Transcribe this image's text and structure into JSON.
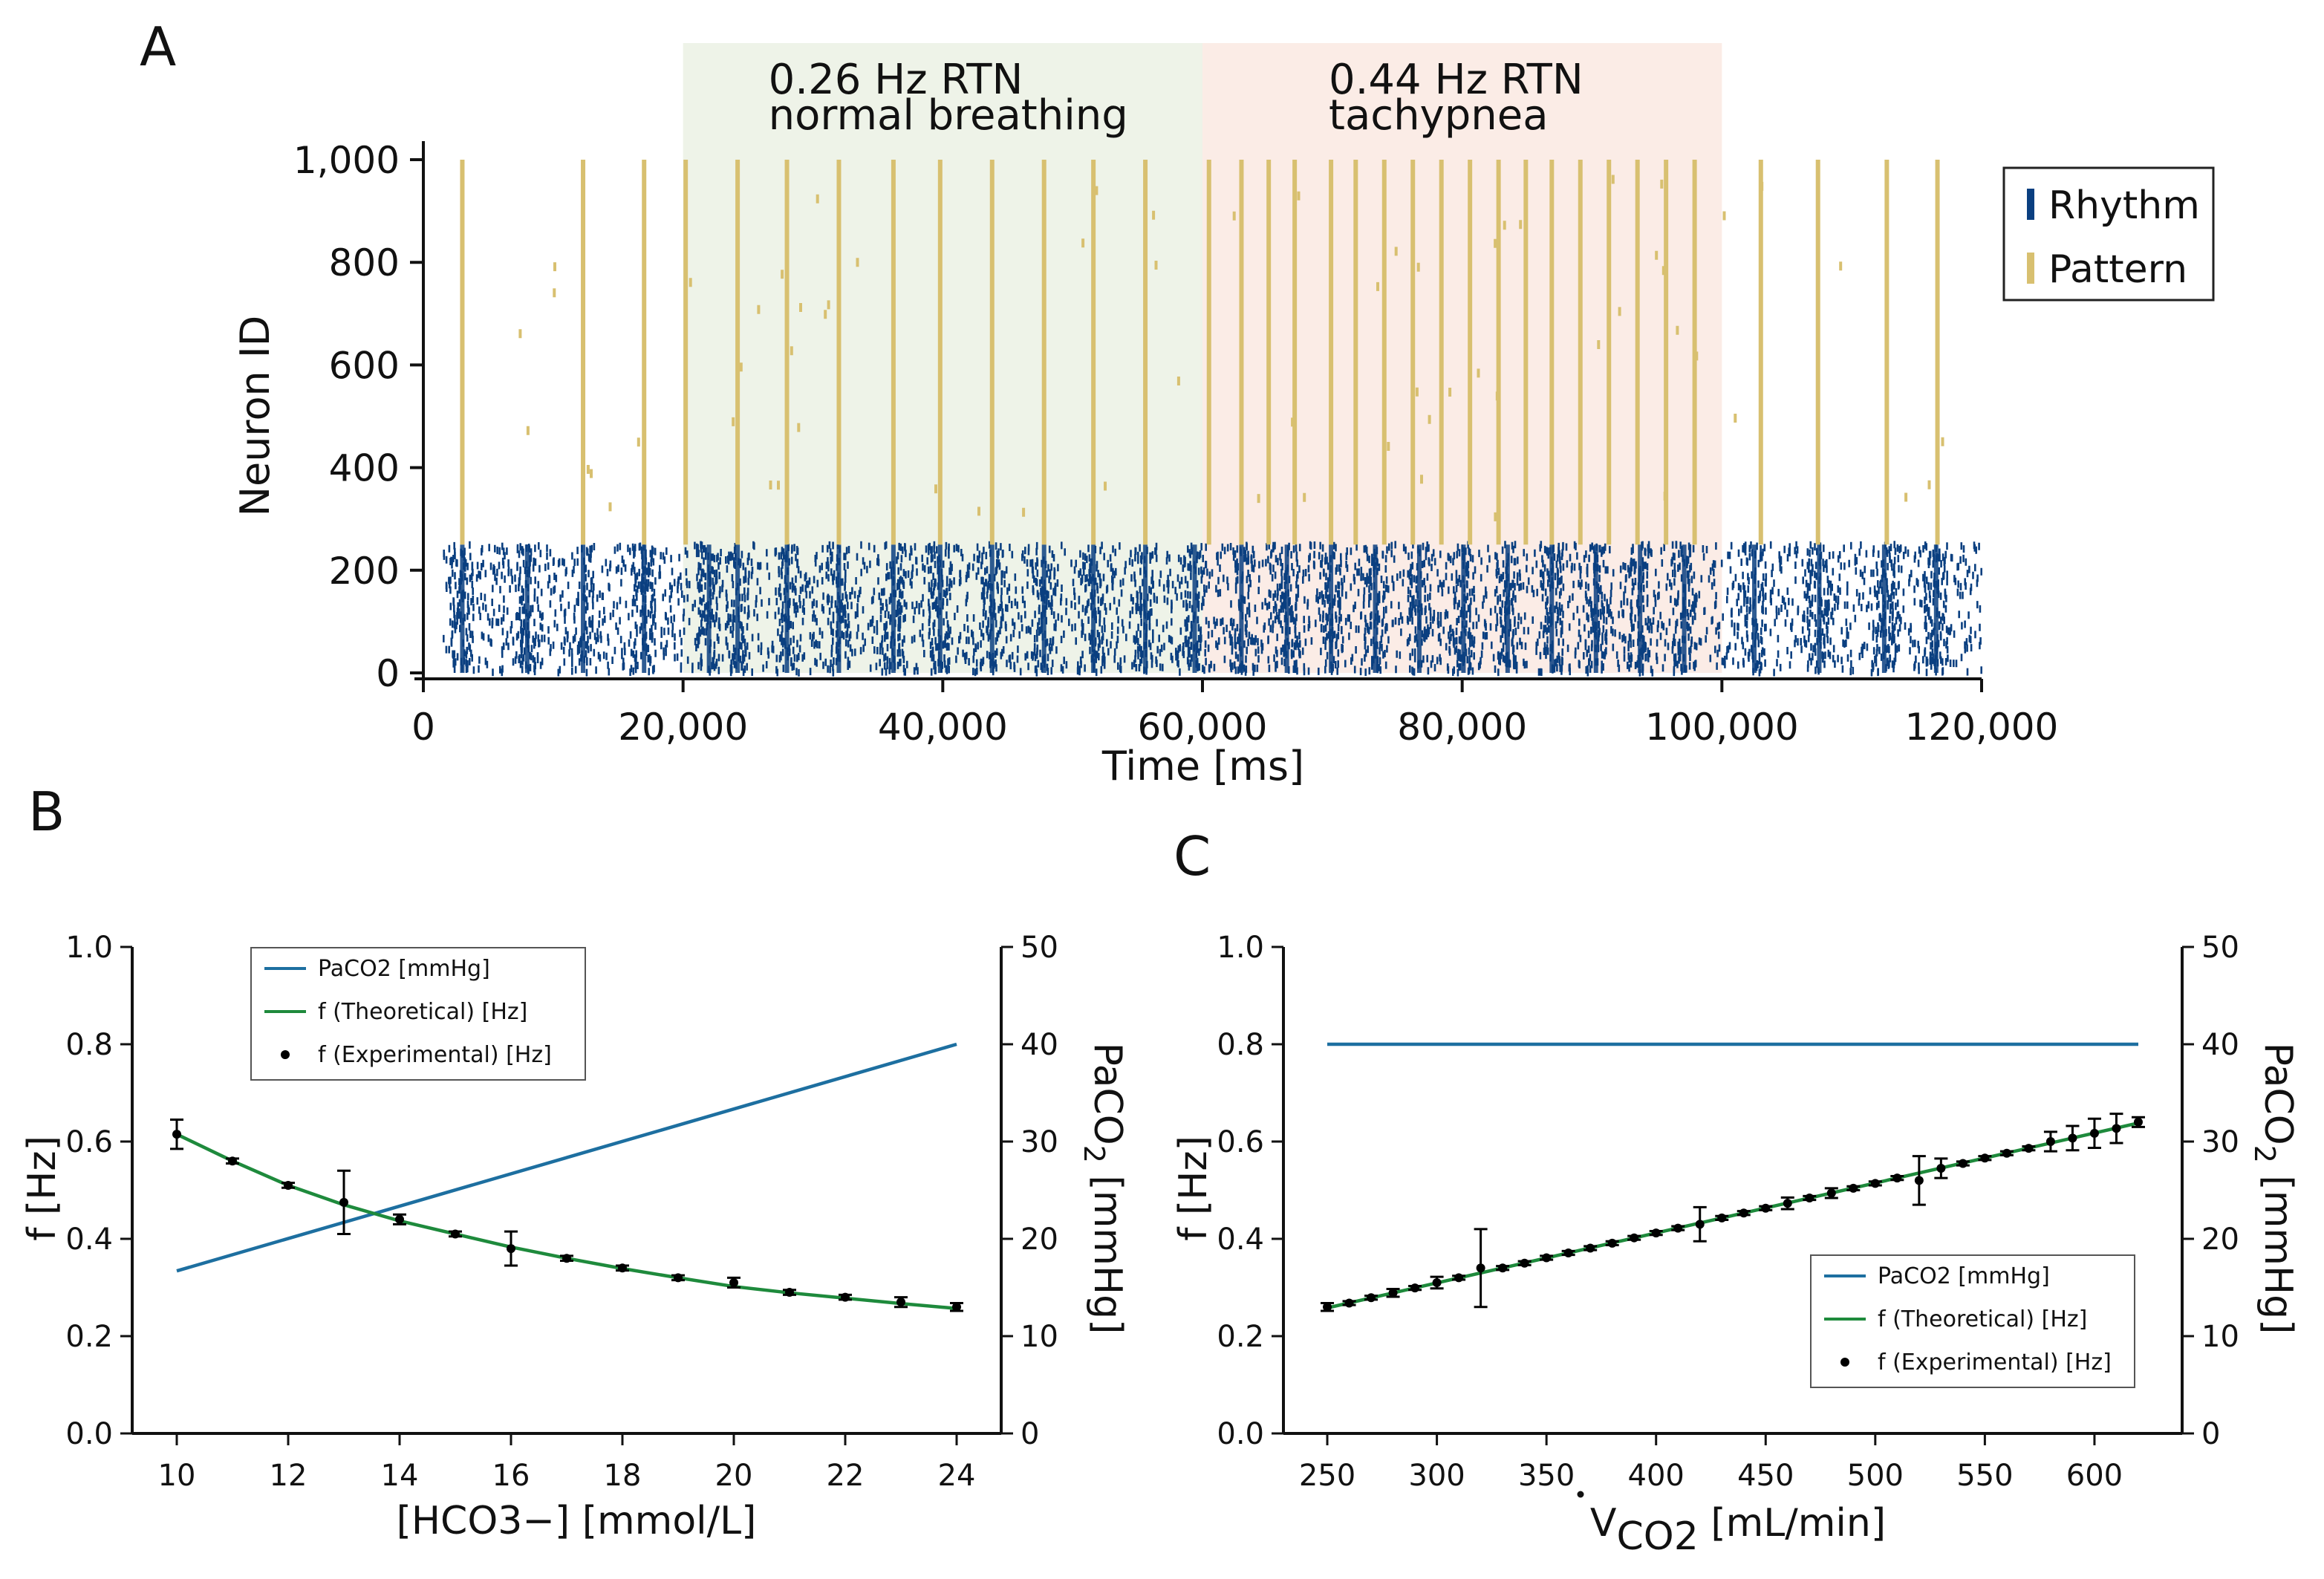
{
  "chart_data": [
    {
      "panel": "A",
      "type": "scatter",
      "subtype": "raster",
      "xlabel": "Time [ms]",
      "ylabel": "Neuron ID",
      "xlim": [
        0,
        120000
      ],
      "ylim": [
        0,
        1000
      ],
      "x_ticks": [
        0,
        20000,
        40000,
        60000,
        80000,
        100000,
        120000
      ],
      "x_tick_labels": [
        "0",
        "20,000",
        "40,000",
        "60,000",
        "80,000",
        "100,000",
        "120,000"
      ],
      "y_ticks": [
        0,
        200,
        400,
        600,
        800,
        1000
      ],
      "y_tick_labels": [
        "0",
        "200",
        "400",
        "600",
        "800",
        "1,000"
      ],
      "legend": [
        "Rhythm",
        "Pattern"
      ],
      "legend_position": "right",
      "colors": {
        "rhythm": "#0a3f80",
        "pattern": "#d8c070",
        "normal_bg": "#eef3e8",
        "tachy_bg": "#fbece6"
      },
      "regions": [
        {
          "label_line1": "0.26 Hz RTN",
          "label_line2": "normal breathing",
          "x_start": 20000,
          "x_end": 60000
        },
        {
          "label_line1": "0.44 Hz RTN",
          "label_line2": "tachypnea",
          "x_start": 60000,
          "x_end": 100000
        }
      ],
      "series": [
        {
          "name": "Rhythm",
          "neuron_range": [
            0,
            250
          ],
          "time_range": [
            1500,
            120000
          ],
          "burst_times": [
            3000,
            8000,
            12300,
            17000,
            22000,
            24200,
            28000,
            32000,
            36200,
            39800,
            43800,
            47800,
            51600,
            55600,
            59400,
            63000,
            66500,
            69900,
            73300,
            76700,
            80100,
            83500,
            86900,
            90300,
            93700,
            97100,
            102500,
            107500,
            112500,
            116500
          ]
        },
        {
          "name": "Pattern",
          "neuron_range": [
            250,
            1000
          ],
          "burst_times": [
            3000,
            12300,
            17000,
            20200,
            24200,
            28000,
            32000,
            36200,
            39800,
            43800,
            47800,
            51600,
            55600,
            60500,
            63000,
            65100,
            67100,
            69900,
            71800,
            74000,
            76200,
            78400,
            80600,
            82800,
            84900,
            86900,
            89100,
            91300,
            93500,
            95700,
            97900,
            103000,
            107400,
            112700,
            116600
          ]
        }
      ]
    },
    {
      "panel": "B",
      "type": "line",
      "xlabel": "[HCO3−] [mmol/L]",
      "ylabel": "f [Hz]",
      "y2label": "PaCO2 [mmHg]",
      "xlim": [
        9.2,
        24.8
      ],
      "ylim": [
        0,
        1.0
      ],
      "y2lim": [
        0,
        50
      ],
      "x_ticks": [
        10,
        12,
        14,
        16,
        18,
        20,
        22,
        24
      ],
      "y_ticks": [
        0.0,
        0.2,
        0.4,
        0.6,
        0.8,
        1.0
      ],
      "y_tick_labels": [
        "0.0",
        "0.2",
        "0.4",
        "0.6",
        "0.8",
        "1.0"
      ],
      "y2_ticks": [
        0,
        10,
        20,
        30,
        40,
        50
      ],
      "legend_position": "upper-center",
      "series": [
        {
          "name": "PaCO2 [mmHg]",
          "axis": "right",
          "color": "#1d6fa0",
          "x": [
            10,
            24
          ],
          "y": [
            16.7,
            40
          ]
        },
        {
          "name": "f (Theoretical) [Hz]",
          "axis": "left",
          "color": "#1e8a3c",
          "x": [
            10,
            11,
            12,
            13,
            14,
            15,
            16,
            17,
            18,
            19,
            20,
            21,
            22,
            23,
            24
          ],
          "y": [
            0.615,
            0.56,
            0.51,
            0.47,
            0.437,
            0.41,
            0.383,
            0.36,
            0.339,
            0.32,
            0.302,
            0.289,
            0.278,
            0.267,
            0.257
          ]
        },
        {
          "name": "f (Experimental) [Hz]",
          "axis": "left",
          "color": "#000000",
          "x": [
            10,
            11,
            12,
            13,
            14,
            15,
            16,
            17,
            18,
            19,
            20,
            21,
            22,
            23,
            24
          ],
          "y": [
            0.615,
            0.56,
            0.51,
            0.475,
            0.44,
            0.41,
            0.38,
            0.36,
            0.34,
            0.32,
            0.31,
            0.29,
            0.28,
            0.27,
            0.26
          ],
          "err": [
            0.03,
            0.005,
            0.005,
            0.065,
            0.01,
            0.005,
            0.035,
            0.005,
            0.005,
            0.005,
            0.01,
            0.005,
            0.005,
            0.01,
            0.008
          ]
        }
      ]
    },
    {
      "panel": "C",
      "type": "line",
      "xlabel": "V̇CO2 [mL/min]",
      "xlabel_main": "V",
      "xlabel_sub": "CO2",
      "xlabel_units": "[mL/min]",
      "ylabel": "f [Hz]",
      "y2label": "PaCO2 [mmHg]",
      "xlim": [
        230,
        640
      ],
      "ylim": [
        0,
        1.0
      ],
      "y2lim": [
        0,
        50
      ],
      "x_ticks": [
        250,
        300,
        350,
        400,
        450,
        500,
        550,
        600
      ],
      "y_ticks": [
        0.0,
        0.2,
        0.4,
        0.6,
        0.8,
        1.0
      ],
      "y_tick_labels": [
        "0.0",
        "0.2",
        "0.4",
        "0.6",
        "0.8",
        "1.0"
      ],
      "y2_ticks": [
        0,
        10,
        20,
        30,
        40,
        50
      ],
      "legend_position": "lower-right",
      "series": [
        {
          "name": "PaCO2 [mmHg]",
          "axis": "right",
          "color": "#1d6fa0",
          "x": [
            250,
            620
          ],
          "y": [
            40,
            40
          ]
        },
        {
          "name": "f (Theoretical) [Hz]",
          "axis": "left",
          "color": "#1e8a3c",
          "x": [
            250,
            620
          ],
          "y": [
            0.258,
            0.638
          ]
        },
        {
          "name": "f (Experimental) [Hz]",
          "axis": "left",
          "color": "#000000",
          "x": [
            250,
            260,
            270,
            280,
            290,
            300,
            310,
            320,
            330,
            340,
            350,
            360,
            370,
            380,
            390,
            400,
            410,
            420,
            430,
            440,
            450,
            460,
            470,
            480,
            490,
            500,
            510,
            520,
            530,
            540,
            550,
            560,
            570,
            580,
            590,
            600,
            610,
            620
          ],
          "y": [
            0.26,
            0.268,
            0.279,
            0.289,
            0.299,
            0.31,
            0.32,
            0.34,
            0.34,
            0.35,
            0.361,
            0.371,
            0.381,
            0.391,
            0.402,
            0.412,
            0.422,
            0.43,
            0.443,
            0.453,
            0.463,
            0.473,
            0.484,
            0.494,
            0.504,
            0.514,
            0.525,
            0.52,
            0.545,
            0.555,
            0.566,
            0.576,
            0.586,
            0.6,
            0.607,
            0.617,
            0.627,
            0.64
          ],
          "err": [
            0.008,
            0.004,
            0.004,
            0.008,
            0.004,
            0.012,
            0.004,
            0.08,
            0.004,
            0.004,
            0.004,
            0.004,
            0.004,
            0.004,
            0.004,
            0.004,
            0.004,
            0.035,
            0.004,
            0.004,
            0.004,
            0.012,
            0.004,
            0.01,
            0.004,
            0.004,
            0.004,
            0.05,
            0.02,
            0.004,
            0.004,
            0.004,
            0.004,
            0.02,
            0.025,
            0.03,
            0.03,
            0.01
          ]
        }
      ]
    }
  ],
  "panels": {
    "a": "A",
    "b": "B",
    "c": "C"
  }
}
